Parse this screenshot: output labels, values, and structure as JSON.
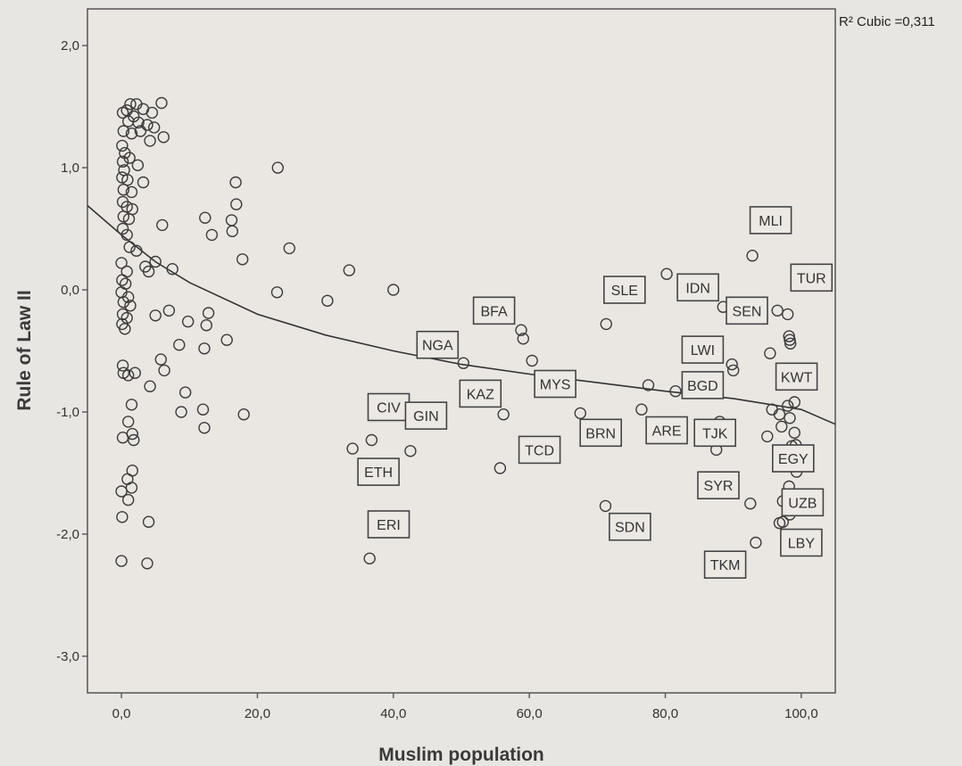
{
  "chart_data": {
    "type": "scatter",
    "title": "",
    "xlabel": "Muslim population",
    "ylabel": "Rule of Law II",
    "xlim": [
      -5,
      105
    ],
    "ylim": [
      -3.3,
      2.3
    ],
    "x_ticks": [
      0,
      20,
      40,
      60,
      80,
      100
    ],
    "x_tick_labels": [
      "0,0",
      "20,0",
      "40,0",
      "60,0",
      "80,0",
      "100,0"
    ],
    "y_ticks": [
      2,
      1,
      0,
      -1,
      -2,
      -3
    ],
    "y_tick_labels": [
      "2,0",
      "1,0",
      "0,0",
      "-1,0",
      "-2,0",
      "-3,0"
    ],
    "grid": false,
    "fit": {
      "type": "cubic",
      "label": "R² Cubic =0,311",
      "x": [
        -5,
        0,
        5,
        10,
        20,
        30,
        40,
        50,
        60,
        70,
        80,
        90,
        100,
        105
      ],
      "y": [
        0.69,
        0.45,
        0.23,
        0.06,
        -0.2,
        -0.37,
        -0.5,
        -0.61,
        -0.69,
        -0.76,
        -0.83,
        -0.89,
        -0.98,
        -1.1
      ]
    },
    "points": [
      {
        "x": 0.2,
        "y": 1.45
      },
      {
        "x": 0.8,
        "y": 1.47
      },
      {
        "x": 1.3,
        "y": 1.52
      },
      {
        "x": 2.2,
        "y": 1.52
      },
      {
        "x": 3.2,
        "y": 1.48
      },
      {
        "x": 4.5,
        "y": 1.45
      },
      {
        "x": 5.9,
        "y": 1.53
      },
      {
        "x": 1,
        "y": 1.38
      },
      {
        "x": 1.8,
        "y": 1.42
      },
      {
        "x": 2.5,
        "y": 1.37
      },
      {
        "x": 3.8,
        "y": 1.35
      },
      {
        "x": 4.8,
        "y": 1.33
      },
      {
        "x": 0.3,
        "y": 1.3
      },
      {
        "x": 1.5,
        "y": 1.28
      },
      {
        "x": 2.8,
        "y": 1.3
      },
      {
        "x": 4.2,
        "y": 1.22
      },
      {
        "x": 6.2,
        "y": 1.25
      },
      {
        "x": 0.1,
        "y": 1.18
      },
      {
        "x": 0.5,
        "y": 1.12
      },
      {
        "x": 0.2,
        "y": 1.05
      },
      {
        "x": 1.2,
        "y": 1.08
      },
      {
        "x": 0.4,
        "y": 0.98
      },
      {
        "x": 2.4,
        "y": 1.02
      },
      {
        "x": 0.1,
        "y": 0.92
      },
      {
        "x": 0.9,
        "y": 0.9
      },
      {
        "x": 3.2,
        "y": 0.88
      },
      {
        "x": 0.3,
        "y": 0.82
      },
      {
        "x": 1.5,
        "y": 0.8
      },
      {
        "x": 0.2,
        "y": 0.72
      },
      {
        "x": 0.8,
        "y": 0.68
      },
      {
        "x": 1.6,
        "y": 0.66
      },
      {
        "x": 0.3,
        "y": 0.6
      },
      {
        "x": 1.1,
        "y": 0.58
      },
      {
        "x": 6,
        "y": 0.53
      },
      {
        "x": 0.2,
        "y": 0.5
      },
      {
        "x": 0.8,
        "y": 0.45
      },
      {
        "x": 1.2,
        "y": 0.35
      },
      {
        "x": 2.2,
        "y": 0.32
      },
      {
        "x": 0,
        "y": 0.22
      },
      {
        "x": 3.5,
        "y": 0.19
      },
      {
        "x": 5,
        "y": 0.23
      },
      {
        "x": 0.8,
        "y": 0.15
      },
      {
        "x": 4,
        "y": 0.15
      },
      {
        "x": 7.5,
        "y": 0.17
      },
      {
        "x": 0.1,
        "y": 0.08
      },
      {
        "x": 0.6,
        "y": 0.05
      },
      {
        "x": 0,
        "y": -0.02
      },
      {
        "x": 1,
        "y": -0.06
      },
      {
        "x": 0.3,
        "y": -0.1
      },
      {
        "x": 1.3,
        "y": -0.13
      },
      {
        "x": 0.2,
        "y": -0.2
      },
      {
        "x": 0.8,
        "y": -0.23
      },
      {
        "x": 5,
        "y": -0.21
      },
      {
        "x": 7,
        "y": -0.17
      },
      {
        "x": 0.1,
        "y": -0.28
      },
      {
        "x": 0.5,
        "y": -0.32
      },
      {
        "x": 9.8,
        "y": -0.26
      },
      {
        "x": 12.8,
        "y": -0.19
      },
      {
        "x": 12.5,
        "y": -0.29
      },
      {
        "x": 15.5,
        "y": -0.41
      },
      {
        "x": 8.5,
        "y": -0.45
      },
      {
        "x": 12.2,
        "y": -0.48
      },
      {
        "x": 5.8,
        "y": -0.57
      },
      {
        "x": 6.3,
        "y": -0.66
      },
      {
        "x": 0.2,
        "y": -0.62
      },
      {
        "x": 0.3,
        "y": -0.68
      },
      {
        "x": 1,
        "y": -0.7
      },
      {
        "x": 2,
        "y": -0.68
      },
      {
        "x": 4.2,
        "y": -0.79
      },
      {
        "x": 9.4,
        "y": -0.84
      },
      {
        "x": 1.5,
        "y": -0.94
      },
      {
        "x": 8.8,
        "y": -1.0
      },
      {
        "x": 12,
        "y": -0.98
      },
      {
        "x": 18,
        "y": -1.02
      },
      {
        "x": 1,
        "y": -1.08
      },
      {
        "x": 12.2,
        "y": -1.13
      },
      {
        "x": 1.6,
        "y": -1.18
      },
      {
        "x": 0.2,
        "y": -1.21
      },
      {
        "x": 1.8,
        "y": -1.23
      },
      {
        "x": 1.6,
        "y": -1.48
      },
      {
        "x": 0.9,
        "y": -1.55
      },
      {
        "x": 1.5,
        "y": -1.62
      },
      {
        "x": 0,
        "y": -1.65
      },
      {
        "x": 1,
        "y": -1.72
      },
      {
        "x": 0.1,
        "y": -1.86
      },
      {
        "x": 4,
        "y": -1.9
      },
      {
        "x": 0,
        "y": -2.22
      },
      {
        "x": 3.8,
        "y": -2.24
      },
      {
        "x": 23,
        "y": 1.0
      },
      {
        "x": 16.8,
        "y": 0.88
      },
      {
        "x": 16.9,
        "y": 0.7
      },
      {
        "x": 16.2,
        "y": 0.57
      },
      {
        "x": 12.3,
        "y": 0.59
      },
      {
        "x": 16.3,
        "y": 0.48
      },
      {
        "x": 13.3,
        "y": 0.45
      },
      {
        "x": 24.7,
        "y": 0.34
      },
      {
        "x": 17.8,
        "y": 0.25
      },
      {
        "x": 33.5,
        "y": 0.16
      },
      {
        "x": 22.9,
        "y": -0.02
      },
      {
        "x": 40,
        "y": 0.0
      },
      {
        "x": 30.3,
        "y": -0.09
      },
      {
        "x": 34,
        "y": -1.3
      },
      {
        "x": 36.8,
        "y": -1.23
      },
      {
        "x": 42.5,
        "y": -1.32
      },
      {
        "x": 36.5,
        "y": -2.2
      },
      {
        "x": 50.3,
        "y": -0.6
      },
      {
        "x": 58.8,
        "y": -0.33
      },
      {
        "x": 59.1,
        "y": -0.4
      },
      {
        "x": 60.4,
        "y": -0.58
      },
      {
        "x": 56.2,
        "y": -1.02
      },
      {
        "x": 55.7,
        "y": -1.46
      },
      {
        "x": 67.5,
        "y": -1.01
      },
      {
        "x": 71.3,
        "y": -0.28
      },
      {
        "x": 71.2,
        "y": -1.77
      },
      {
        "x": 76.5,
        "y": -0.98
      },
      {
        "x": 77.5,
        "y": -0.78
      },
      {
        "x": 80.2,
        "y": 0.13
      },
      {
        "x": 81.5,
        "y": -0.83
      },
      {
        "x": 88,
        "y": -1.08
      },
      {
        "x": 87.5,
        "y": -1.31
      },
      {
        "x": 88.5,
        "y": -0.14
      },
      {
        "x": 89.8,
        "y": -0.61
      },
      {
        "x": 90,
        "y": -0.66
      },
      {
        "x": 92.8,
        "y": 0.28
      },
      {
        "x": 92.5,
        "y": -1.75
      },
      {
        "x": 93.3,
        "y": -2.07
      },
      {
        "x": 95.4,
        "y": -0.52
      },
      {
        "x": 95.7,
        "y": -0.98
      },
      {
        "x": 95,
        "y": -1.2
      },
      {
        "x": 96.5,
        "y": -0.17
      },
      {
        "x": 96.8,
        "y": -1.02
      },
      {
        "x": 97.1,
        "y": -1.12
      },
      {
        "x": 96.8,
        "y": -1.91
      },
      {
        "x": 97.3,
        "y": -1.9
      },
      {
        "x": 97.3,
        "y": -1.73
      },
      {
        "x": 98,
        "y": -0.2
      },
      {
        "x": 98.2,
        "y": -0.38
      },
      {
        "x": 98.3,
        "y": -0.41
      },
      {
        "x": 98.4,
        "y": -0.44
      },
      {
        "x": 98,
        "y": -0.95
      },
      {
        "x": 98.3,
        "y": -1.05
      },
      {
        "x": 98.6,
        "y": -1.28
      },
      {
        "x": 98.2,
        "y": -1.61
      },
      {
        "x": 98.3,
        "y": -1.84
      },
      {
        "x": 99,
        "y": -0.92
      },
      {
        "x": 99,
        "y": -1.17
      },
      {
        "x": 99.2,
        "y": -1.27
      },
      {
        "x": 99.2,
        "y": -1.33
      },
      {
        "x": 99.3,
        "y": -1.49
      }
    ],
    "annotations": [
      {
        "label": "MLI",
        "x": 95.5,
        "y": 0.57
      },
      {
        "label": "TUR",
        "x": 101.5,
        "y": 0.1
      },
      {
        "label": "SLE",
        "x": 74,
        "y": 0.0
      },
      {
        "label": "IDN",
        "x": 84.8,
        "y": 0.02
      },
      {
        "label": "SEN",
        "x": 92,
        "y": -0.17
      },
      {
        "label": "BFA",
        "x": 54.8,
        "y": -0.17
      },
      {
        "label": "NGA",
        "x": 46.5,
        "y": -0.45
      },
      {
        "label": "LWI",
        "x": 85.5,
        "y": -0.49
      },
      {
        "label": "KWT",
        "x": 99.3,
        "y": -0.71
      },
      {
        "label": "BGD",
        "x": 85.5,
        "y": -0.78
      },
      {
        "label": "MYS",
        "x": 63.8,
        "y": -0.77
      },
      {
        "label": "KAZ",
        "x": 52.8,
        "y": -0.85
      },
      {
        "label": "CIV",
        "x": 39.3,
        "y": -0.96
      },
      {
        "label": "GIN",
        "x": 44.8,
        "y": -1.03
      },
      {
        "label": "ARE",
        "x": 80.2,
        "y": -1.15
      },
      {
        "label": "TJK",
        "x": 87.3,
        "y": -1.17
      },
      {
        "label": "BRN",
        "x": 70.5,
        "y": -1.17
      },
      {
        "label": "TCD",
        "x": 61.5,
        "y": -1.31
      },
      {
        "label": "EGY",
        "x": 98.8,
        "y": -1.38
      },
      {
        "label": "ETH",
        "x": 37.8,
        "y": -1.49
      },
      {
        "label": "SYR",
        "x": 87.8,
        "y": -1.6
      },
      {
        "label": "UZB",
        "x": 100.2,
        "y": -1.74
      },
      {
        "label": "SDN",
        "x": 74.8,
        "y": -1.94
      },
      {
        "label": "ERI",
        "x": 39.3,
        "y": -1.92
      },
      {
        "label": "LBY",
        "x": 100,
        "y": -2.07
      },
      {
        "label": "TKM",
        "x": 88.8,
        "y": -2.25
      }
    ]
  }
}
